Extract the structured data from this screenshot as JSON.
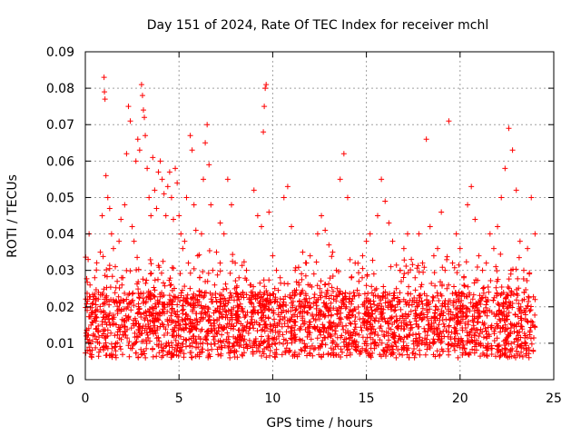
{
  "chart_data": {
    "type": "scatter",
    "title": "Day 151 of 2024, Rate Of TEC Index for receiver mchl",
    "xlabel": "GPS time / hours",
    "ylabel": "ROTI / TECUs",
    "xlim": [
      0,
      25
    ],
    "ylim": [
      0,
      0.09
    ],
    "xticks": [
      "0",
      "5",
      "10",
      "15",
      "20",
      "25"
    ],
    "yticks": [
      "0",
      "0.01",
      "0.02",
      "0.03",
      "0.04",
      "0.05",
      "0.06",
      "0.07",
      "0.08",
      "0.09"
    ],
    "grid": true,
    "marker": "+",
    "color": "#ff0000",
    "series": [
      {
        "name": "ROTI",
        "points": [
          [
            0.05,
            0.012
          ],
          [
            0.1,
            0.019
          ],
          [
            0.15,
            0.033
          ],
          [
            0.2,
            0.04
          ],
          [
            0.25,
            0.026
          ],
          [
            0.3,
            0.015
          ],
          [
            0.4,
            0.021
          ],
          [
            0.5,
            0.028
          ],
          [
            0.6,
            0.014
          ],
          [
            0.7,
            0.024
          ],
          [
            0.8,
            0.035
          ],
          [
            0.9,
            0.045
          ],
          [
            1.0,
            0.083
          ],
          [
            1.02,
            0.079
          ],
          [
            1.05,
            0.077
          ],
          [
            1.1,
            0.056
          ],
          [
            1.2,
            0.05
          ],
          [
            1.3,
            0.047
          ],
          [
            1.4,
            0.04
          ],
          [
            1.5,
            0.036
          ],
          [
            1.6,
            0.031
          ],
          [
            1.7,
            0.027
          ],
          [
            1.8,
            0.038
          ],
          [
            1.9,
            0.044
          ],
          [
            2.0,
            0.028
          ],
          [
            2.1,
            0.048
          ],
          [
            2.2,
            0.062
          ],
          [
            2.3,
            0.075
          ],
          [
            2.4,
            0.071
          ],
          [
            2.5,
            0.042
          ],
          [
            2.6,
            0.038
          ],
          [
            2.7,
            0.06
          ],
          [
            2.8,
            0.066
          ],
          [
            2.9,
            0.063
          ],
          [
            3.0,
            0.081
          ],
          [
            3.05,
            0.078
          ],
          [
            3.1,
            0.074
          ],
          [
            3.15,
            0.072
          ],
          [
            3.2,
            0.067
          ],
          [
            3.3,
            0.058
          ],
          [
            3.4,
            0.05
          ],
          [
            3.5,
            0.045
          ],
          [
            3.6,
            0.061
          ],
          [
            3.7,
            0.052
          ],
          [
            3.8,
            0.047
          ],
          [
            3.9,
            0.057
          ],
          [
            4.0,
            0.06
          ],
          [
            4.1,
            0.055
          ],
          [
            4.2,
            0.051
          ],
          [
            4.3,
            0.045
          ],
          [
            4.4,
            0.053
          ],
          [
            4.5,
            0.057
          ],
          [
            4.6,
            0.05
          ],
          [
            4.7,
            0.044
          ],
          [
            4.8,
            0.058
          ],
          [
            4.9,
            0.054
          ],
          [
            5.0,
            0.045
          ],
          [
            5.1,
            0.04
          ],
          [
            5.2,
            0.036
          ],
          [
            5.3,
            0.038
          ],
          [
            5.4,
            0.05
          ],
          [
            5.5,
            0.032
          ],
          [
            5.6,
            0.067
          ],
          [
            5.7,
            0.063
          ],
          [
            5.8,
            0.048
          ],
          [
            5.9,
            0.041
          ],
          [
            6.0,
            0.034
          ],
          [
            6.1,
            0.028
          ],
          [
            6.2,
            0.04
          ],
          [
            6.3,
            0.055
          ],
          [
            6.4,
            0.065
          ],
          [
            6.5,
            0.07
          ],
          [
            6.6,
            0.059
          ],
          [
            6.7,
            0.048
          ],
          [
            6.8,
            0.03
          ],
          [
            6.9,
            0.026
          ],
          [
            7.0,
            0.035
          ],
          [
            7.2,
            0.043
          ],
          [
            7.4,
            0.04
          ],
          [
            7.6,
            0.055
          ],
          [
            7.8,
            0.048
          ],
          [
            8.0,
            0.032
          ],
          [
            8.2,
            0.028
          ],
          [
            8.4,
            0.024
          ],
          [
            8.6,
            0.03
          ],
          [
            8.8,
            0.026
          ],
          [
            9.0,
            0.052
          ],
          [
            9.2,
            0.045
          ],
          [
            9.4,
            0.042
          ],
          [
            9.5,
            0.068
          ],
          [
            9.55,
            0.075
          ],
          [
            9.6,
            0.08
          ],
          [
            9.65,
            0.081
          ],
          [
            9.8,
            0.046
          ],
          [
            10.0,
            0.034
          ],
          [
            10.2,
            0.03
          ],
          [
            10.4,
            0.028
          ],
          [
            10.6,
            0.05
          ],
          [
            10.8,
            0.053
          ],
          [
            11.0,
            0.042
          ],
          [
            11.2,
            0.03
          ],
          [
            11.4,
            0.026
          ],
          [
            11.6,
            0.035
          ],
          [
            11.8,
            0.032
          ],
          [
            12.0,
            0.034
          ],
          [
            12.2,
            0.029
          ],
          [
            12.4,
            0.04
          ],
          [
            12.6,
            0.045
          ],
          [
            12.8,
            0.041
          ],
          [
            13.0,
            0.037
          ],
          [
            13.2,
            0.035
          ],
          [
            13.4,
            0.03
          ],
          [
            13.6,
            0.055
          ],
          [
            13.8,
            0.062
          ],
          [
            14.0,
            0.05
          ],
          [
            14.2,
            0.028
          ],
          [
            14.4,
            0.032
          ],
          [
            14.6,
            0.027
          ],
          [
            14.8,
            0.034
          ],
          [
            15.0,
            0.038
          ],
          [
            15.2,
            0.04
          ],
          [
            15.4,
            0.029
          ],
          [
            15.6,
            0.045
          ],
          [
            15.8,
            0.055
          ],
          [
            16.0,
            0.049
          ],
          [
            16.2,
            0.043
          ],
          [
            16.4,
            0.038
          ],
          [
            16.6,
            0.025
          ],
          [
            16.8,
            0.03
          ],
          [
            17.0,
            0.036
          ],
          [
            17.2,
            0.04
          ],
          [
            17.4,
            0.033
          ],
          [
            17.6,
            0.028
          ],
          [
            17.8,
            0.04
          ],
          [
            18.0,
            0.032
          ],
          [
            18.2,
            0.066
          ],
          [
            18.4,
            0.042
          ],
          [
            18.6,
            0.034
          ],
          [
            18.8,
            0.036
          ],
          [
            19.0,
            0.046
          ],
          [
            19.2,
            0.03
          ],
          [
            19.4,
            0.071
          ],
          [
            19.6,
            0.032
          ],
          [
            19.8,
            0.04
          ],
          [
            20.0,
            0.036
          ],
          [
            20.2,
            0.028
          ],
          [
            20.4,
            0.048
          ],
          [
            20.6,
            0.053
          ],
          [
            20.8,
            0.044
          ],
          [
            21.0,
            0.034
          ],
          [
            21.2,
            0.03
          ],
          [
            21.4,
            0.032
          ],
          [
            21.6,
            0.04
          ],
          [
            21.8,
            0.036
          ],
          [
            22.0,
            0.042
          ],
          [
            22.2,
            0.05
          ],
          [
            22.4,
            0.058
          ],
          [
            22.6,
            0.069
          ],
          [
            22.8,
            0.063
          ],
          [
            23.0,
            0.052
          ],
          [
            23.2,
            0.038
          ],
          [
            23.4,
            0.03
          ],
          [
            23.6,
            0.036
          ],
          [
            23.8,
            0.05
          ],
          [
            24.0,
            0.04
          ]
        ]
      }
    ]
  }
}
